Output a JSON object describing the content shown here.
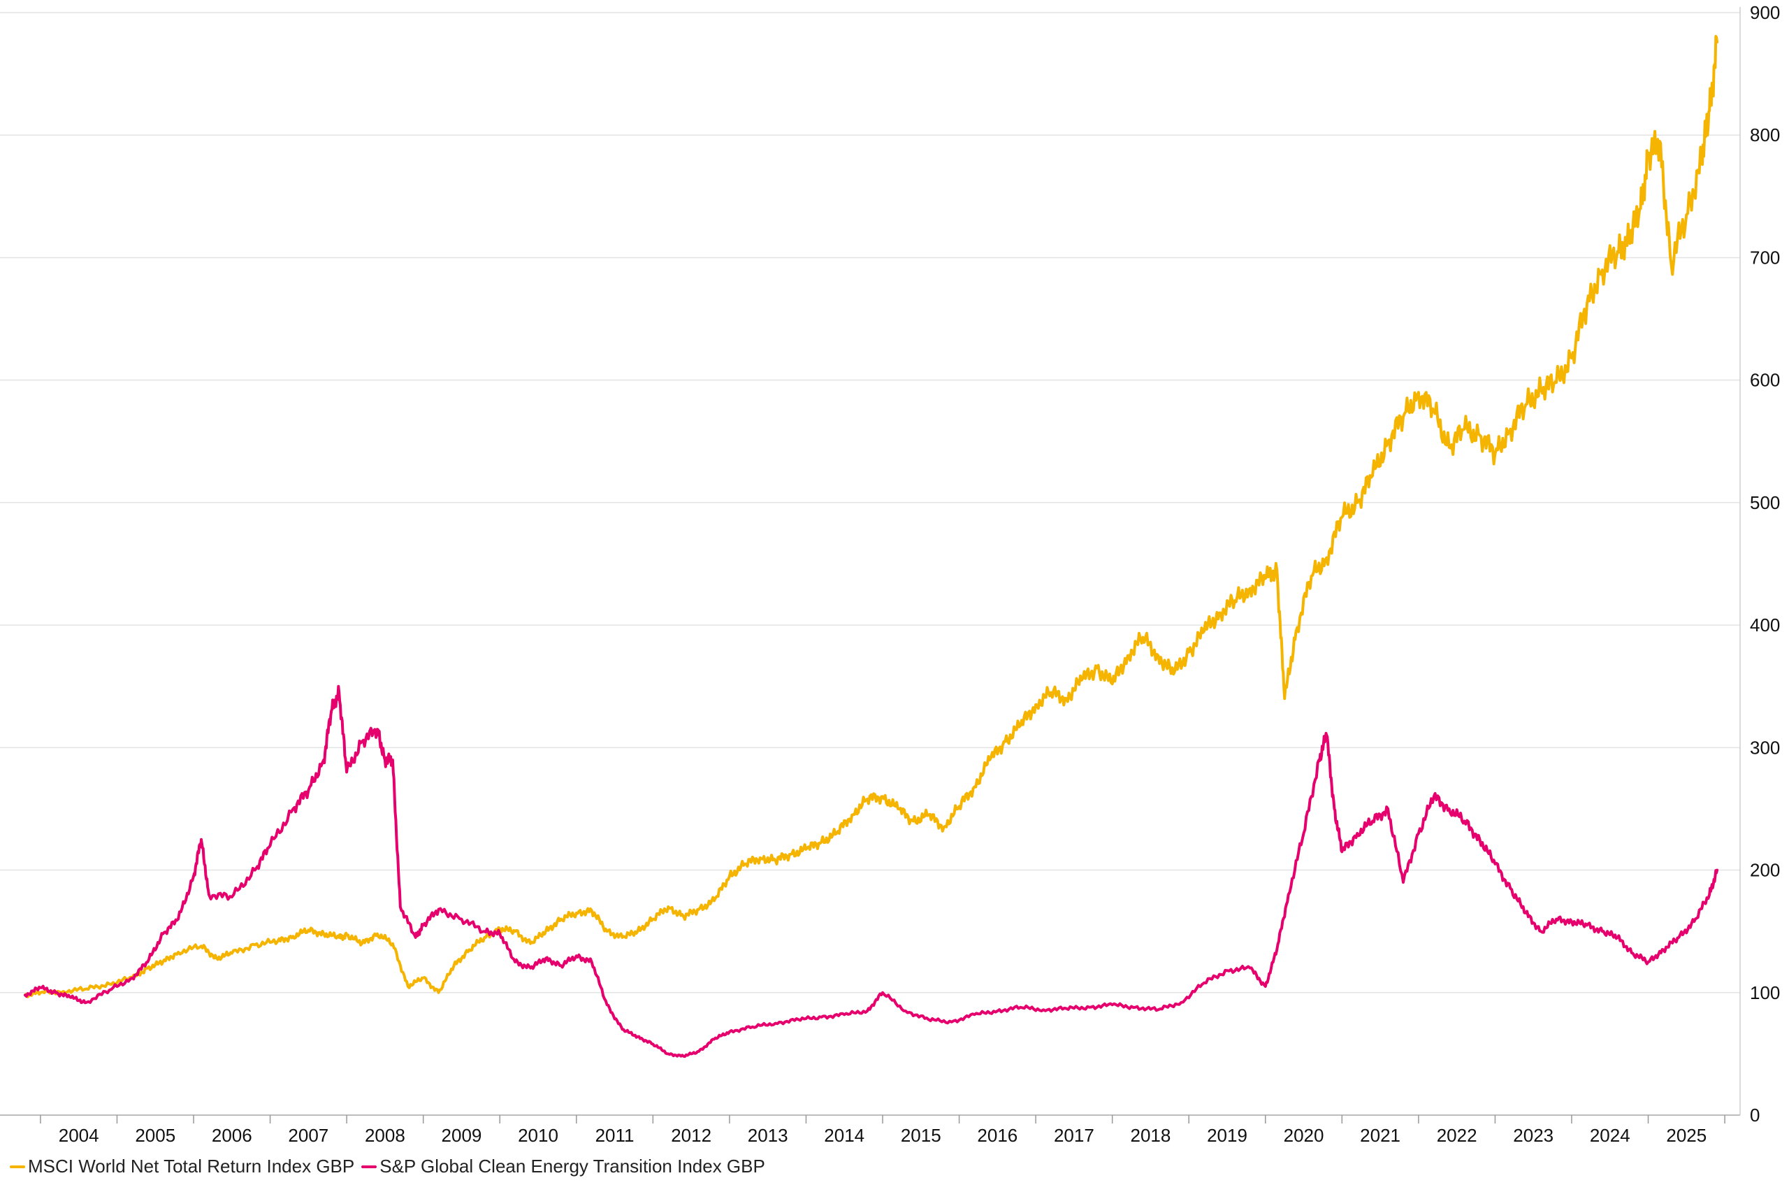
{
  "chart_data": {
    "type": "line",
    "title": "",
    "xlabel": "",
    "ylabel": "",
    "ylim": [
      0,
      900
    ],
    "yticks": [
      0,
      100,
      200,
      300,
      400,
      500,
      600,
      700,
      800,
      900
    ],
    "xlim": [
      2003.8,
      2026.2
    ],
    "xtick_years": [
      "2004",
      "2005",
      "2006",
      "2007",
      "2008",
      "2009",
      "2010",
      "2011",
      "2012",
      "2013",
      "2014",
      "2015",
      "2016",
      "2017",
      "2018",
      "2019",
      "2020",
      "2021",
      "2022",
      "2023",
      "2024",
      "2025"
    ],
    "grid": true,
    "legend_position": "bottom-left",
    "series": [
      {
        "name": "MSCI World Net Total Return Index GBP",
        "color": "#F5B400",
        "x": [
          2003.8,
          2004.0,
          2004.3,
          2004.6,
          2004.9,
          2005.2,
          2005.4,
          2005.6,
          2005.8,
          2006.1,
          2006.3,
          2006.5,
          2006.8,
          2007.1,
          2007.3,
          2007.5,
          2007.7,
          2007.9,
          2008.0,
          2008.2,
          2008.4,
          2008.6,
          2008.8,
          2009.0,
          2009.2,
          2009.4,
          2009.6,
          2009.8,
          2010.0,
          2010.2,
          2010.4,
          2010.6,
          2010.8,
          2011.0,
          2011.2,
          2011.4,
          2011.6,
          2011.8,
          2012.0,
          2012.2,
          2012.4,
          2012.6,
          2012.8,
          2013.0,
          2013.2,
          2013.4,
          2013.6,
          2013.8,
          2014.0,
          2014.2,
          2014.4,
          2014.6,
          2014.8,
          2015.0,
          2015.2,
          2015.4,
          2015.6,
          2015.8,
          2016.0,
          2016.2,
          2016.4,
          2016.6,
          2016.8,
          2017.0,
          2017.2,
          2017.4,
          2017.6,
          2017.8,
          2018.0,
          2018.2,
          2018.4,
          2018.6,
          2018.8,
          2019.0,
          2019.2,
          2019.4,
          2019.6,
          2019.8,
          2020.0,
          2020.15,
          2020.25,
          2020.4,
          2020.6,
          2020.8,
          2021.0,
          2021.2,
          2021.4,
          2021.6,
          2021.8,
          2022.0,
          2022.2,
          2022.4,
          2022.6,
          2022.8,
          2023.0,
          2023.2,
          2023.4,
          2023.6,
          2023.8,
          2024.0,
          2024.2,
          2024.4,
          2024.6,
          2024.75,
          2024.9,
          2025.0,
          2025.15,
          2025.3,
          2025.5,
          2025.7,
          2025.8,
          2025.9
        ],
        "values": [
          98,
          100,
          101,
          103,
          107,
          112,
          120,
          125,
          133,
          138,
          128,
          132,
          139,
          142,
          146,
          151,
          148,
          145,
          147,
          140,
          148,
          140,
          105,
          112,
          100,
          122,
          135,
          145,
          152,
          150,
          140,
          150,
          160,
          165,
          167,
          150,
          145,
          150,
          160,
          170,
          162,
          168,
          175,
          195,
          205,
          210,
          208,
          213,
          217,
          223,
          230,
          245,
          258,
          260,
          250,
          240,
          245,
          235,
          252,
          268,
          290,
          305,
          318,
          335,
          345,
          340,
          355,
          365,
          352,
          375,
          390,
          375,
          360,
          378,
          395,
          410,
          420,
          430,
          438,
          445,
          340,
          395,
          440,
          455,
          488,
          500,
          522,
          550,
          570,
          590,
          575,
          545,
          560,
          555,
          540,
          560,
          580,
          592,
          598,
          618,
          662,
          690,
          705,
          715,
          740,
          782,
          795,
          695,
          735,
          780,
          820,
          876
        ],
        "values_unit": "index"
      },
      {
        "name": "S&P Global Clean Energy Transition Index GBP",
        "color": "#E5006D",
        "x": [
          2003.8,
          2004.0,
          2004.2,
          2004.4,
          2004.6,
          2004.9,
          2005.2,
          2005.4,
          2005.6,
          2005.8,
          2006.0,
          2006.1,
          2006.2,
          2006.5,
          2006.8,
          2007.0,
          2007.3,
          2007.5,
          2007.7,
          2007.8,
          2007.9,
          2008.0,
          2008.2,
          2008.4,
          2008.5,
          2008.6,
          2008.7,
          2008.9,
          2009.0,
          2009.2,
          2009.5,
          2009.8,
          2010.0,
          2010.2,
          2010.4,
          2010.6,
          2010.8,
          2011.0,
          2011.2,
          2011.4,
          2011.6,
          2011.8,
          2012.0,
          2012.2,
          2012.4,
          2012.6,
          2012.8,
          2013.0,
          2013.3,
          2013.6,
          2013.9,
          2014.2,
          2014.5,
          2014.8,
          2015.0,
          2015.3,
          2015.6,
          2015.9,
          2016.2,
          2016.5,
          2016.8,
          2017.1,
          2017.4,
          2017.7,
          2018.0,
          2018.3,
          2018.6,
          2018.9,
          2019.2,
          2019.5,
          2019.8,
          2020.0,
          2020.15,
          2020.3,
          2020.5,
          2020.7,
          2020.8,
          2020.9,
          2021.0,
          2021.2,
          2021.4,
          2021.6,
          2021.8,
          2022.0,
          2022.2,
          2022.4,
          2022.6,
          2022.8,
          2023.0,
          2023.2,
          2023.4,
          2023.6,
          2023.8,
          2024.0,
          2024.2,
          2024.4,
          2024.6,
          2024.8,
          2025.0,
          2025.2,
          2025.4,
          2025.6,
          2025.8,
          2025.9
        ],
        "values": [
          98,
          104,
          100,
          96,
          92,
          102,
          112,
          125,
          148,
          160,
          195,
          225,
          180,
          178,
          200,
          220,
          250,
          265,
          290,
          330,
          345,
          280,
          305,
          315,
          290,
          290,
          170,
          145,
          155,
          168,
          160,
          150,
          148,
          125,
          120,
          128,
          122,
          130,
          125,
          90,
          70,
          64,
          58,
          50,
          48,
          52,
          62,
          68,
          72,
          75,
          78,
          80,
          82,
          85,
          100,
          85,
          78,
          76,
          82,
          85,
          88,
          86,
          87,
          88,
          90,
          88,
          86,
          92,
          108,
          118,
          120,
          105,
          135,
          180,
          230,
          290,
          310,
          250,
          215,
          230,
          240,
          250,
          190,
          230,
          260,
          250,
          240,
          225,
          205,
          185,
          165,
          150,
          160,
          158,
          155,
          150,
          145,
          132,
          125,
          135,
          145,
          158,
          180,
          200
        ],
        "values_unit": "index"
      }
    ]
  },
  "legend": {
    "items": [
      {
        "label": "MSCI World Net Total Return Index GBP",
        "color": "#F5B400"
      },
      {
        "label": "S&P Global Clean Energy Transition Index GBP",
        "color": "#E5006D"
      }
    ]
  }
}
